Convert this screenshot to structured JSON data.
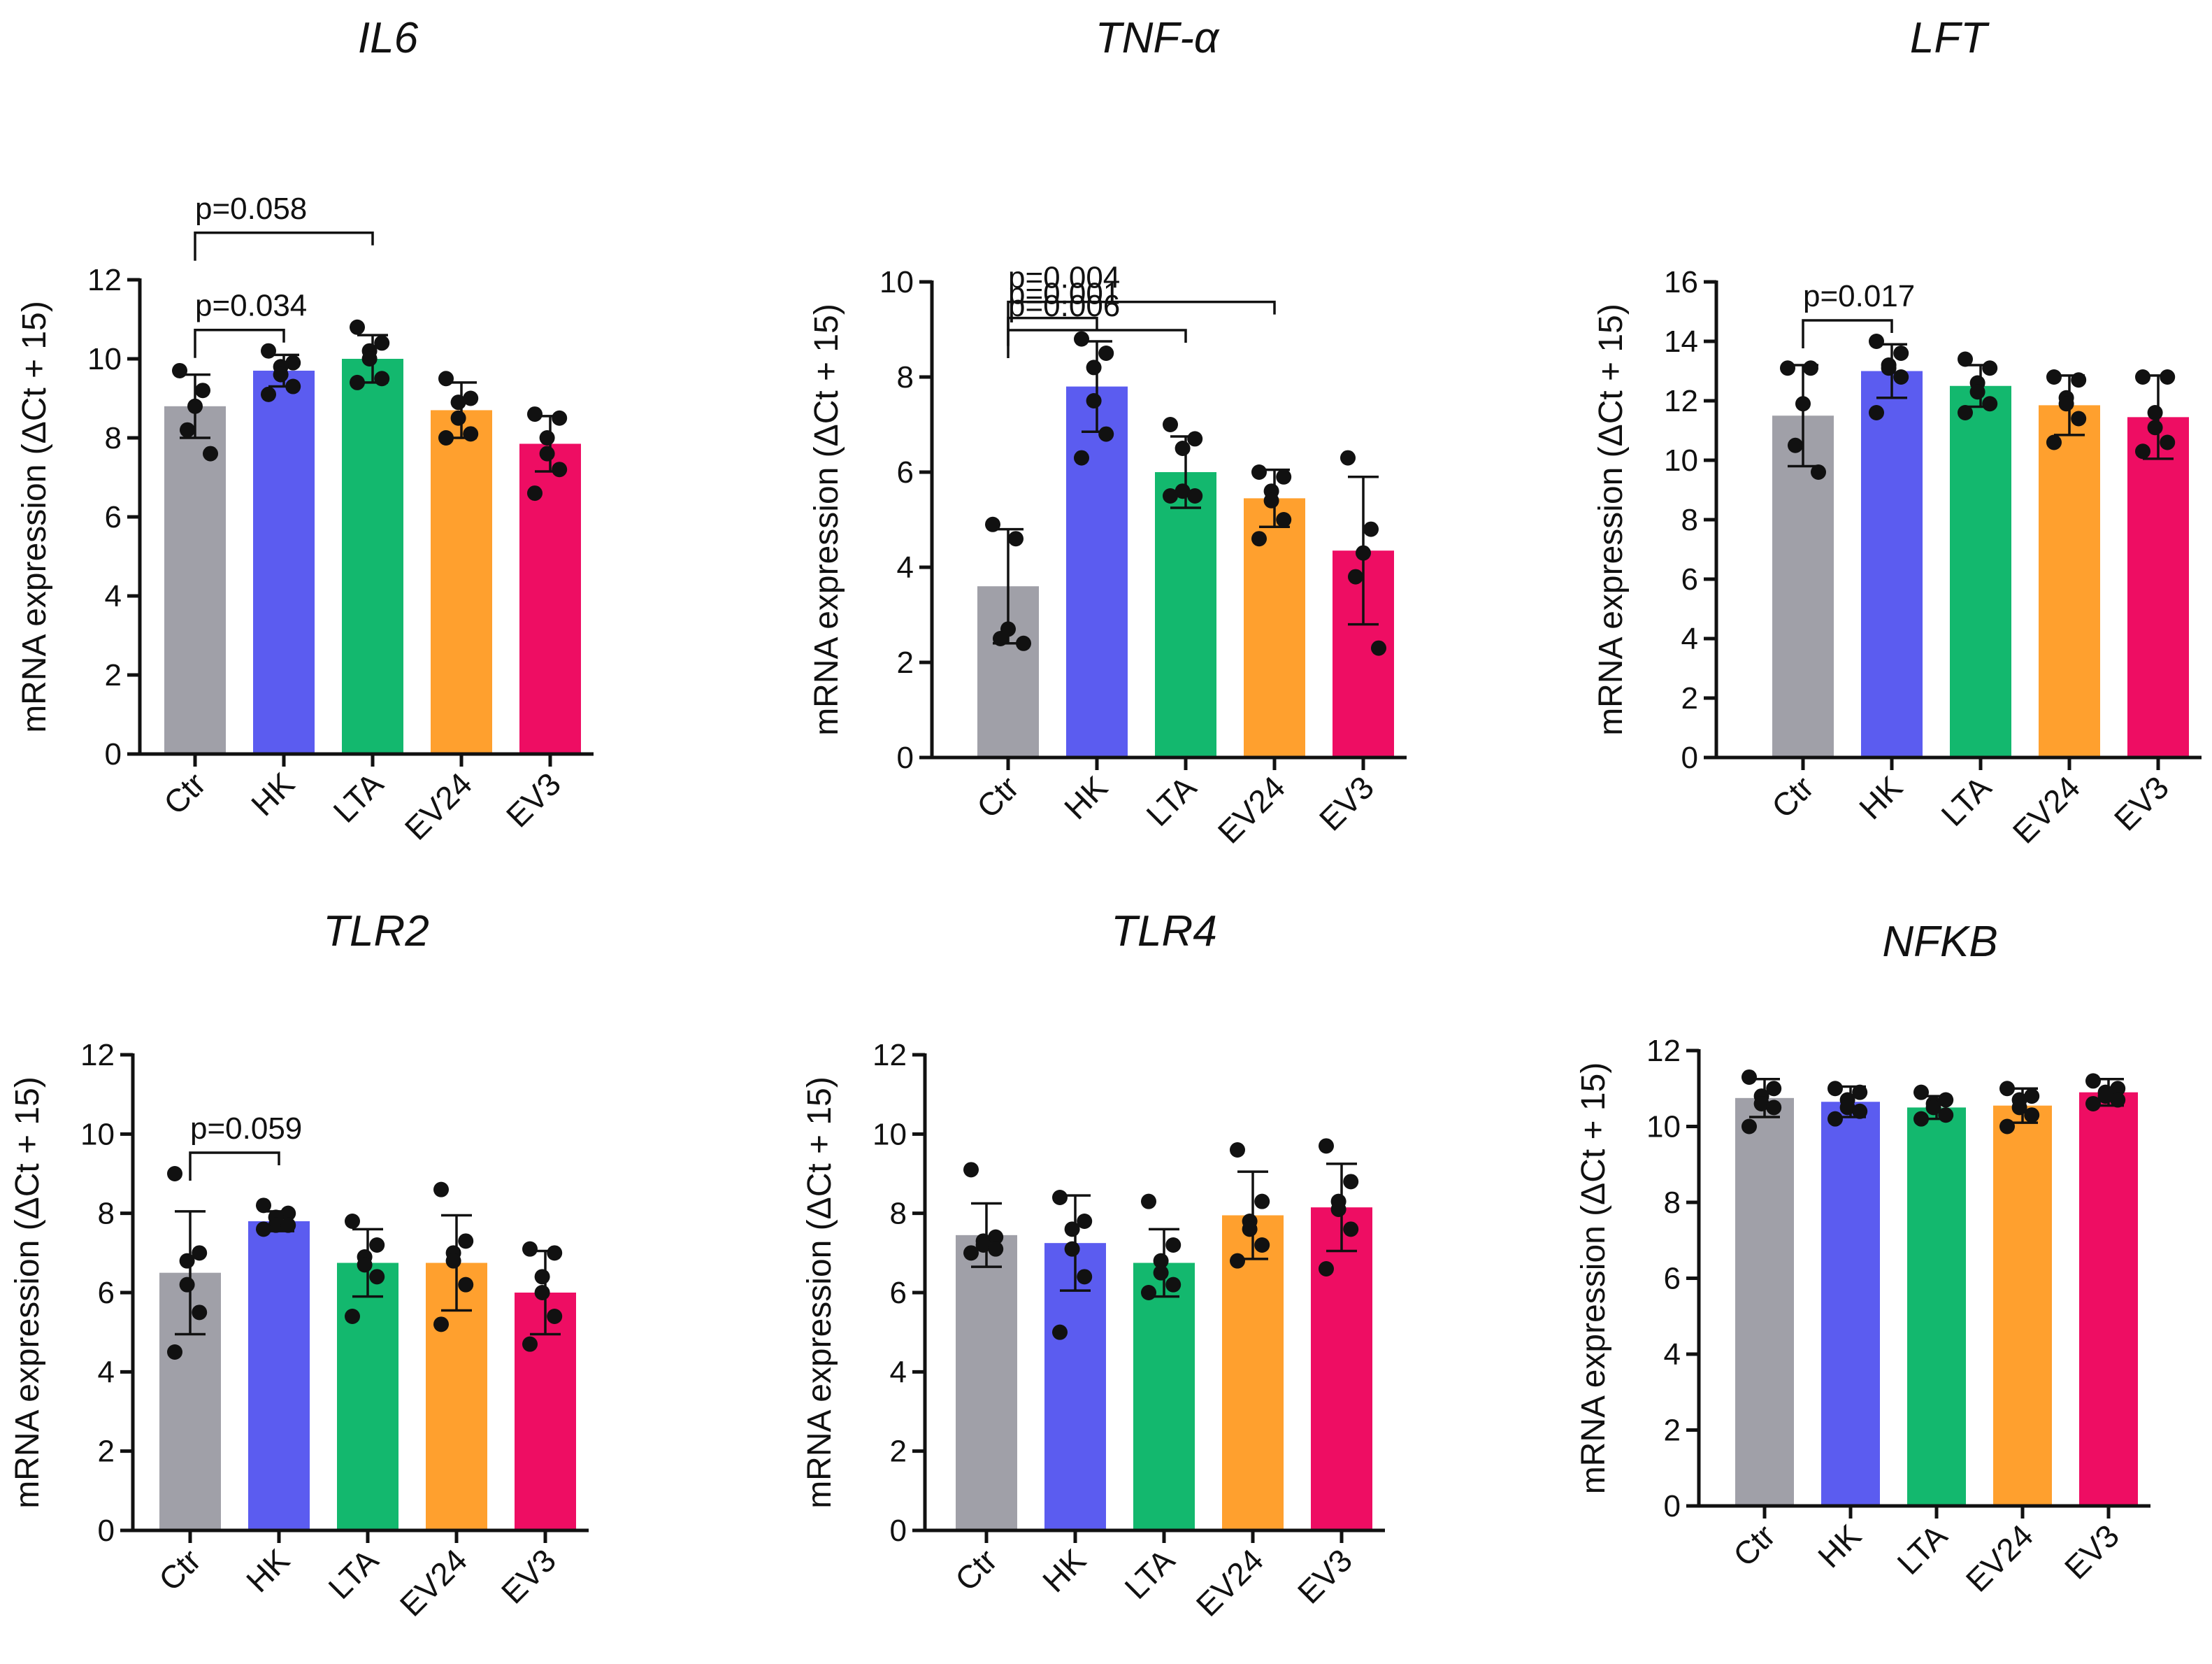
{
  "figure": {
    "categories": [
      "Ctr",
      "HK",
      "LTA",
      "EV24",
      "EV3"
    ],
    "colors": [
      "#a0a0a8",
      "#5b5cf0",
      "#13b86e",
      "#ffa02e",
      "#ee0d63"
    ],
    "ylabel": "mRNA expression (ΔCt + 15)"
  },
  "chart_data": [
    {
      "type": "bar",
      "title": "IL6",
      "ylabel": "mRNA expression (ΔCt + 15)",
      "ylim": [
        0,
        12
      ],
      "ticks": [
        "0",
        "2",
        "4",
        "6",
        "8",
        "10",
        "12"
      ],
      "categories": [
        "Ctr",
        "HK",
        "LTA",
        "EV24",
        "EV3"
      ],
      "values": [
        8.8,
        9.7,
        10.0,
        8.7,
        7.85
      ],
      "sd": [
        0.8,
        0.4,
        0.6,
        0.7,
        0.7
      ],
      "points": [
        [
          9.7,
          9.2,
          8.8,
          8.2,
          7.6
        ],
        [
          10.2,
          9.9,
          9.8,
          9.6,
          9.3,
          9.1
        ],
        [
          10.8,
          10.4,
          10.2,
          10.0,
          9.5,
          9.4
        ],
        [
          9.5,
          9.0,
          8.9,
          8.5,
          8.1,
          8.0
        ],
        [
          8.6,
          8.5,
          8.0,
          7.6,
          7.2,
          6.6
        ]
      ],
      "comparisons": [
        {
          "label": "p=0.034",
          "from": 0,
          "to": 1
        },
        {
          "label": "p=0.058",
          "from": 0,
          "to": 2
        }
      ]
    },
    {
      "type": "bar",
      "title": "TNF-α",
      "ylabel": "mRNA expression (ΔCt + 15)",
      "ylim": [
        0,
        10
      ],
      "ticks": [
        "0",
        "2",
        "4",
        "6",
        "8",
        "10"
      ],
      "categories": [
        "Ctr",
        "HK",
        "LTA",
        "EV24",
        "EV3"
      ],
      "values": [
        3.6,
        7.8,
        6.0,
        5.45,
        4.35
      ],
      "sd": [
        1.2,
        0.95,
        0.75,
        0.6,
        1.55
      ],
      "points": [
        [
          4.9,
          4.6,
          2.7,
          2.5,
          2.4
        ],
        [
          8.8,
          8.5,
          8.2,
          7.5,
          6.8,
          6.3
        ],
        [
          7.0,
          6.7,
          6.5,
          5.6,
          5.5,
          5.5
        ],
        [
          6.0,
          5.9,
          5.6,
          5.4,
          5.0,
          4.6
        ],
        [
          6.3,
          4.8,
          4.3,
          3.8,
          2.3
        ]
      ],
      "comparisons": [
        {
          "label": "p=0.001",
          "from": 0,
          "to": 1
        },
        {
          "label": "p=0.006",
          "from": 0,
          "to": 2
        },
        {
          "label": "p=0.004",
          "from": 0,
          "to": 3
        }
      ]
    },
    {
      "type": "bar",
      "title": "LFT",
      "ylabel": "mRNA expression (ΔCt + 15)",
      "ylim": [
        0,
        16
      ],
      "ticks": [
        "0",
        "2",
        "4",
        "6",
        "8",
        "10",
        "12",
        "14",
        "16"
      ],
      "categories": [
        "Ctr",
        "HK",
        "LTA",
        "EV24",
        "EV3"
      ],
      "values": [
        11.5,
        13.0,
        12.5,
        11.85,
        11.45
      ],
      "sd": [
        1.7,
        0.9,
        0.7,
        1.0,
        1.4
      ],
      "points": [
        [
          13.1,
          13.1,
          11.9,
          10.5,
          9.6
        ],
        [
          14.0,
          13.6,
          13.2,
          13.1,
          12.8,
          11.6
        ],
        [
          13.4,
          13.1,
          12.6,
          12.3,
          11.9,
          11.6
        ],
        [
          12.8,
          12.7,
          12.1,
          11.9,
          11.4,
          10.6
        ],
        [
          12.8,
          12.8,
          11.6,
          11.1,
          10.6,
          10.3
        ]
      ],
      "comparisons": [
        {
          "label": "p=0.017",
          "from": 0,
          "to": 1
        }
      ]
    },
    {
      "type": "bar",
      "title": "TLR2",
      "ylabel": "mRNA expression (ΔCt + 15)",
      "ylim": [
        0,
        12
      ],
      "ticks": [
        "0",
        "2",
        "4",
        "6",
        "8",
        "10",
        "12"
      ],
      "categories": [
        "Ctr",
        "HK",
        "LTA",
        "EV24",
        "EV3"
      ],
      "values": [
        6.5,
        7.8,
        6.75,
        6.75,
        6.0
      ],
      "sd": [
        1.55,
        0.25,
        0.85,
        1.2,
        1.05
      ],
      "points": [
        [
          9.0,
          7.0,
          6.8,
          6.2,
          5.5,
          4.5
        ],
        [
          8.2,
          8.0,
          7.9,
          7.7,
          7.7,
          7.6
        ],
        [
          7.8,
          7.2,
          6.9,
          6.7,
          6.4,
          5.4
        ],
        [
          8.6,
          7.3,
          7.0,
          6.8,
          6.2,
          5.2
        ],
        [
          7.1,
          7.0,
          6.4,
          6.0,
          5.4,
          4.7
        ]
      ],
      "comparisons": [
        {
          "label": "p=0.059",
          "from": 0,
          "to": 1
        }
      ]
    },
    {
      "type": "bar",
      "title": "TLR4",
      "ylabel": "mRNA expression (ΔCt + 15)",
      "ylim": [
        0,
        12
      ],
      "ticks": [
        "0",
        "2",
        "4",
        "6",
        "8",
        "10",
        "12"
      ],
      "categories": [
        "Ctr",
        "HK",
        "LTA",
        "EV24",
        "EV3"
      ],
      "values": [
        7.45,
        7.25,
        6.75,
        7.95,
        8.15
      ],
      "sd": [
        0.8,
        1.2,
        0.85,
        1.1,
        1.1
      ],
      "points": [
        [
          9.1,
          7.4,
          7.3,
          7.2,
          7.1,
          7.0
        ],
        [
          8.4,
          7.8,
          7.6,
          7.1,
          6.4,
          5.0
        ],
        [
          8.3,
          7.2,
          6.8,
          6.5,
          6.2,
          6.0
        ],
        [
          9.6,
          8.3,
          7.8,
          7.6,
          7.2,
          6.8
        ],
        [
          9.7,
          8.8,
          8.3,
          8.1,
          7.6,
          6.6
        ]
      ],
      "comparisons": []
    },
    {
      "type": "bar",
      "title": "NFKB",
      "ylabel": "mRNA expression (ΔCt + 15)",
      "ylim": [
        0,
        12
      ],
      "ticks": [
        "0",
        "2",
        "4",
        "6",
        "8",
        "10",
        "12"
      ],
      "categories": [
        "Ctr",
        "HK",
        "LTA",
        "EV24",
        "EV3"
      ],
      "values": [
        10.75,
        10.65,
        10.5,
        10.55,
        10.9
      ],
      "sd": [
        0.5,
        0.4,
        0.3,
        0.45,
        0.35
      ],
      "points": [
        [
          11.3,
          11.0,
          10.8,
          10.6,
          10.5,
          10.0
        ],
        [
          11.0,
          10.9,
          10.7,
          10.5,
          10.4,
          10.2
        ],
        [
          10.9,
          10.7,
          10.6,
          10.5,
          10.3,
          10.2
        ],
        [
          11.0,
          10.8,
          10.7,
          10.5,
          10.3,
          10.0
        ],
        [
          11.2,
          11.0,
          10.9,
          10.8,
          10.7,
          10.6
        ]
      ],
      "comparisons": []
    }
  ]
}
